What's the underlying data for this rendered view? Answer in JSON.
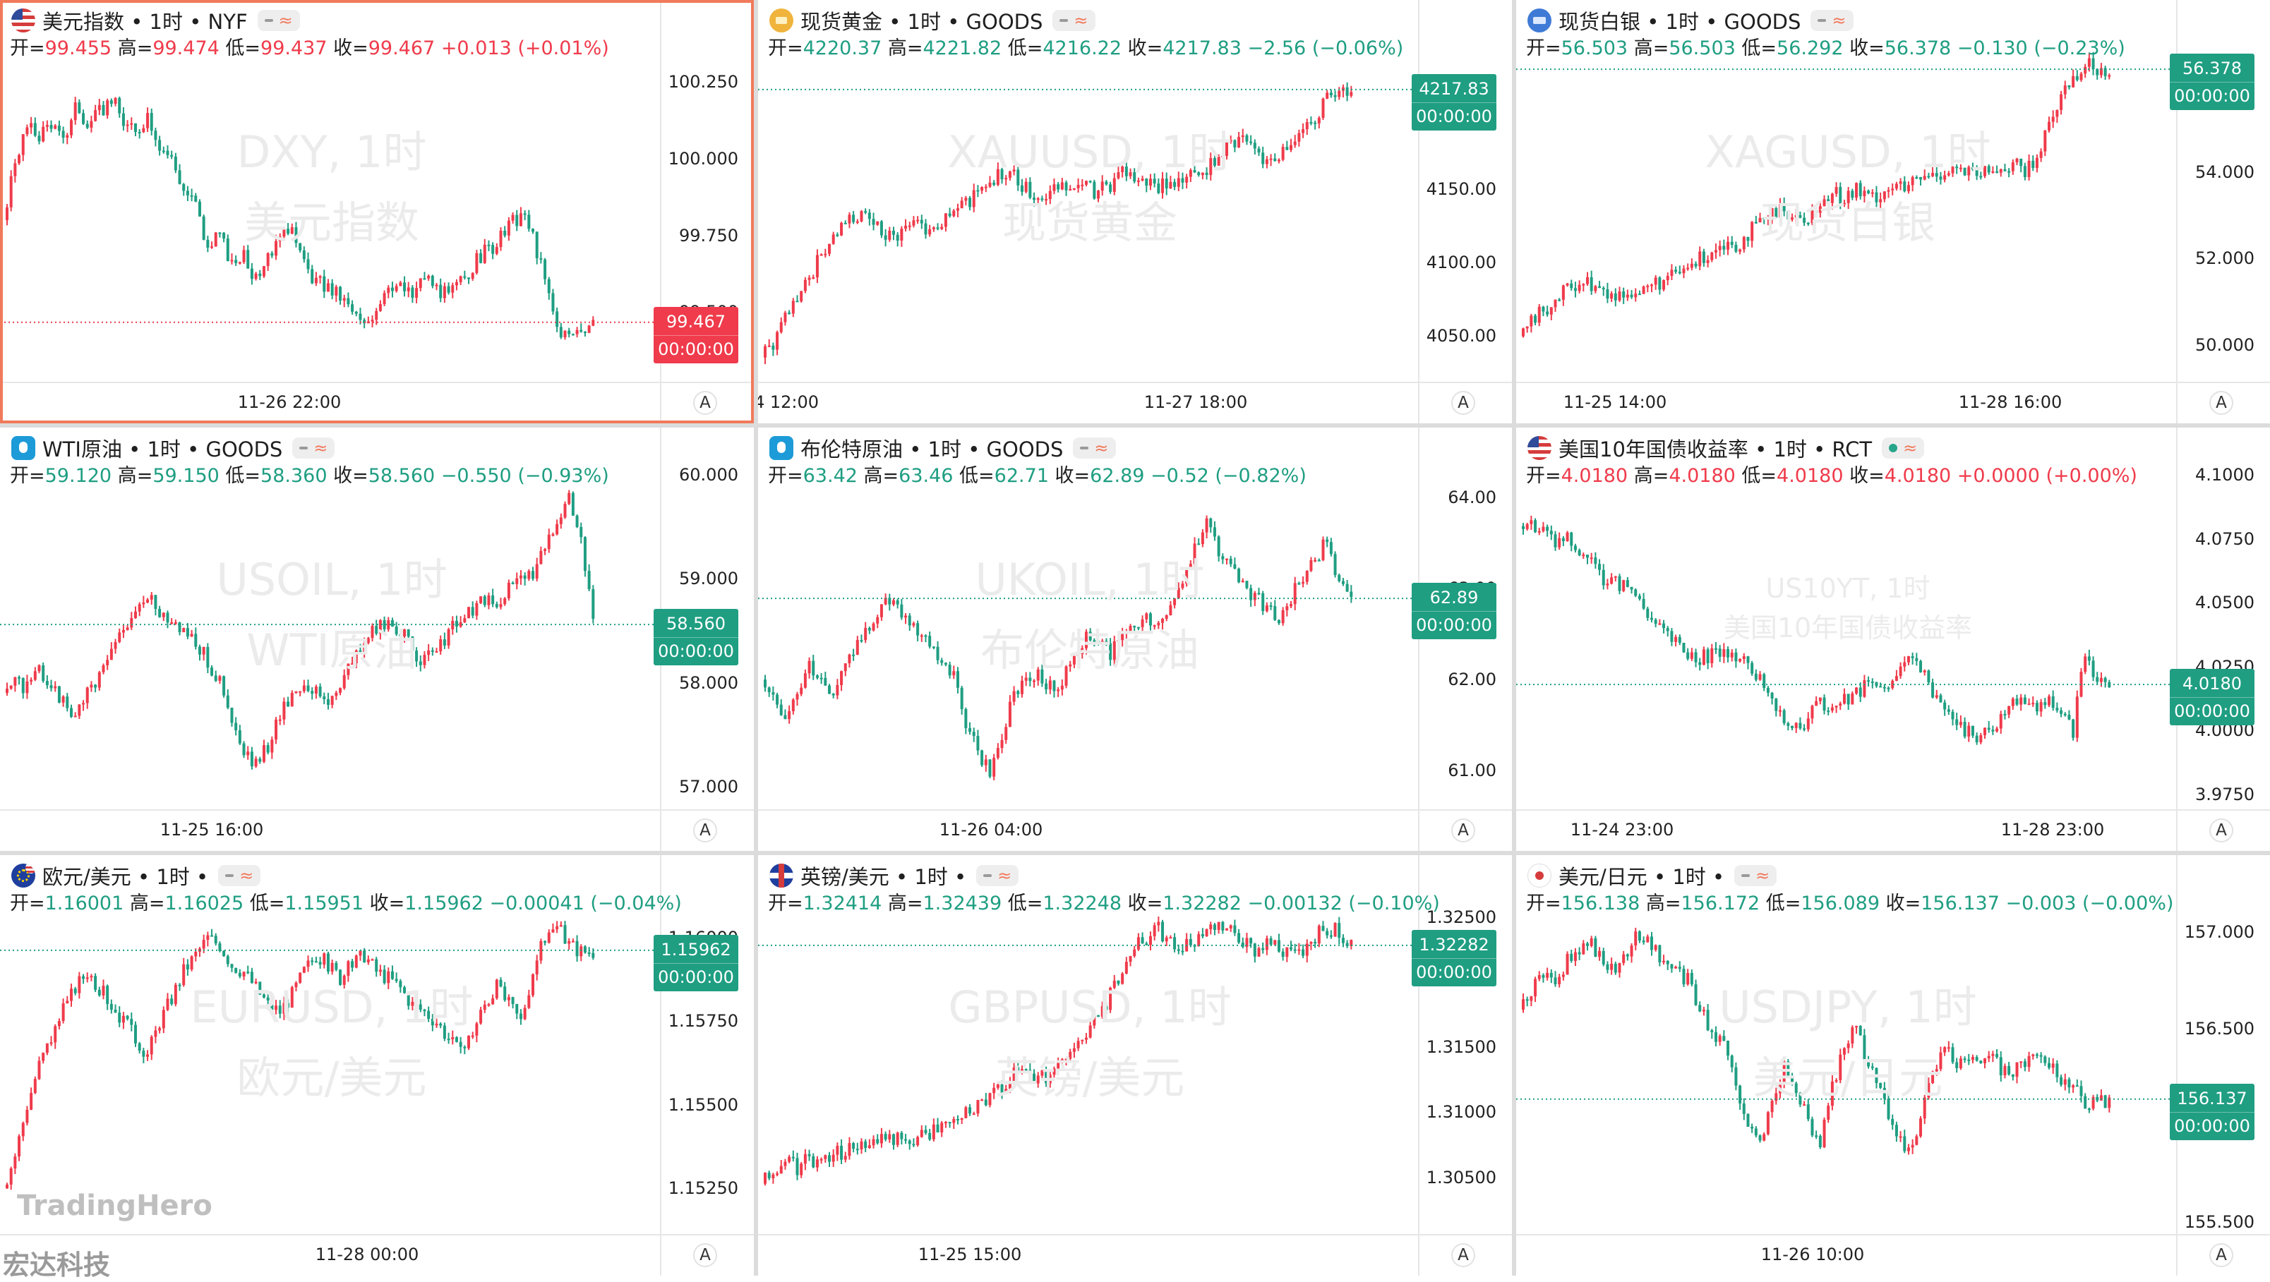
{
  "colors": {
    "up": "#ef3b4b",
    "down": "#1f9e82",
    "accent_border": "#f07a5a"
  },
  "brand": {
    "logo": "TradingHero",
    "company": "宏达科技"
  },
  "panels": [
    {
      "id": "dxy",
      "flag": "us",
      "title": "美元指数 • 1时 • NYF",
      "pill": "dash",
      "change_dir": "up",
      "ohlc": [
        [
          "开",
          "99.455"
        ],
        [
          "高",
          "99.474"
        ],
        [
          "低",
          "99.437"
        ],
        [
          "收",
          "99.467"
        ]
      ],
      "change": "+0.013 (+0.01%)",
      "watermark": [
        "DXY, 1时",
        "美元指数"
      ],
      "watermark_style": "large",
      "y_ticks": [
        "100.250",
        "100.000",
        "99.750",
        "99.500"
      ],
      "y_range": [
        99.28,
        100.38
      ],
      "x_labels": [
        "11-26 22:00"
      ],
      "last_price": "99.467",
      "countdown": "00:00:00",
      "price_path": [
        99.8,
        100.0,
        100.1,
        100.08,
        100.12,
        100.05,
        100.18,
        100.1,
        100.15,
        100.2,
        100.12,
        100.08,
        100.15,
        100.05,
        100.0,
        99.9,
        99.85,
        99.7,
        99.75,
        99.65,
        99.7,
        99.6,
        99.7,
        99.72,
        99.8,
        99.65,
        99.6,
        99.58,
        99.55,
        99.5,
        99.45,
        99.52,
        99.6,
        99.58,
        99.55,
        99.62,
        99.58,
        99.55,
        99.6,
        99.65,
        99.7,
        99.72,
        99.78,
        99.82,
        99.75,
        99.6,
        99.45,
        99.42,
        99.45,
        99.47
      ],
      "active": true
    },
    {
      "id": "xau",
      "flag": "gold",
      "title": "现货黄金 • 1时 • GOODS",
      "pill": "dash",
      "change_dir": "down",
      "ohlc": [
        [
          "开",
          "4220.37"
        ],
        [
          "高",
          "4221.82"
        ],
        [
          "低",
          "4216.22"
        ],
        [
          "收",
          "4217.83"
        ]
      ],
      "change": "−2.56 (−0.06%)",
      "watermark": [
        "XAUUSD, 1时",
        "现货黄金"
      ],
      "watermark_style": "large",
      "y_ticks": [
        "4150.00",
        "4100.00",
        "4050.00"
      ],
      "y_range": [
        4020,
        4250
      ],
      "x_labels": [
        "4 12:00",
        "11-27 18:00"
      ],
      "last_price": "4217.83",
      "countdown": "00:00:00",
      "price_path": [
        4035,
        4045,
        4060,
        4075,
        4090,
        4105,
        4115,
        4125,
        4132,
        4128,
        4120,
        4118,
        4125,
        4130,
        4122,
        4128,
        4135,
        4140,
        4150,
        4155,
        4160,
        4158,
        4150,
        4145,
        4148,
        4152,
        4155,
        4150,
        4148,
        4152,
        4160,
        4158,
        4155,
        4150,
        4155,
        4158,
        4160,
        4165,
        4170,
        4180,
        4185,
        4178,
        4170,
        4175,
        4182,
        4190,
        4200,
        4210,
        4215,
        4218
      ],
      "active": false
    },
    {
      "id": "xag",
      "flag": "silver",
      "title": "现货白银 • 1时 • GOODS",
      "pill": "dash",
      "change_dir": "down",
      "ohlc": [
        [
          "开",
          "56.503"
        ],
        [
          "高",
          "56.503"
        ],
        [
          "低",
          "56.292"
        ],
        [
          "收",
          "56.378"
        ]
      ],
      "change": "−0.130 (−0.23%)",
      "watermark": [
        "XAGUSD, 1时",
        "现货白银"
      ],
      "watermark_style": "large",
      "y_ticks": [
        "54.000",
        "52.000",
        "50.000"
      ],
      "y_range": [
        49.2,
        57.0
      ],
      "x_labels": [
        "11-25 14:00",
        "11-28 16:00"
      ],
      "last_price": "56.378",
      "countdown": "00:00:00",
      "price_path": [
        50.2,
        50.5,
        50.8,
        51.0,
        51.3,
        51.5,
        51.4,
        51.2,
        51.1,
        51.3,
        51.2,
        51.4,
        51.5,
        51.6,
        51.8,
        52.0,
        52.2,
        52.4,
        52.3,
        52.6,
        52.8,
        53.0,
        53.1,
        52.9,
        53.0,
        53.2,
        53.5,
        53.4,
        53.6,
        53.4,
        53.5,
        53.7,
        53.6,
        53.8,
        53.9,
        54.0,
        54.1,
        54.0,
        53.9,
        54.0,
        54.1,
        54.2,
        54.0,
        54.3,
        55.0,
        55.8,
        56.2,
        56.5,
        56.4,
        56.4
      ],
      "active": false
    },
    {
      "id": "wti",
      "flag": "oil",
      "title": "WTI原油 • 1时 • GOODS",
      "pill": "dash",
      "change_dir": "down",
      "ohlc": [
        [
          "开",
          "59.120"
        ],
        [
          "高",
          "59.150"
        ],
        [
          "低",
          "58.360"
        ],
        [
          "收",
          "58.560"
        ]
      ],
      "change": "−0.550 (−0.93%)",
      "watermark": [
        "USOIL, 1时",
        "WTI原油"
      ],
      "watermark_style": "large",
      "y_ticks": [
        "60.000",
        "59.000",
        "58.000",
        "57.000"
      ],
      "y_range": [
        56.8,
        60.05
      ],
      "x_labels": [
        "11-25 16:00"
      ],
      "last_price": "58.560",
      "countdown": "00:00:00",
      "price_path": [
        57.9,
        58.0,
        57.95,
        58.1,
        58.0,
        57.8,
        57.7,
        57.9,
        58.1,
        58.3,
        58.5,
        58.7,
        58.8,
        58.7,
        58.6,
        58.5,
        58.4,
        58.2,
        58.0,
        57.6,
        57.3,
        57.2,
        57.4,
        57.7,
        57.9,
        58.0,
        57.9,
        57.8,
        58.0,
        58.2,
        58.4,
        58.5,
        58.6,
        58.5,
        58.3,
        58.2,
        58.3,
        58.5,
        58.6,
        58.7,
        58.8,
        58.7,
        58.9,
        59.1,
        59.0,
        59.3,
        59.6,
        59.8,
        59.4,
        58.56
      ],
      "active": false
    },
    {
      "id": "brent",
      "flag": "oil",
      "title": "布伦特原油 • 1时 • GOODS",
      "pill": "dash",
      "change_dir": "down",
      "ohlc": [
        [
          "开",
          "63.42"
        ],
        [
          "高",
          "63.46"
        ],
        [
          "低",
          "62.71"
        ],
        [
          "收",
          "62.89"
        ]
      ],
      "change": "−0.52 (−0.82%)",
      "watermark": [
        "UKOIL, 1时",
        "布伦特原油"
      ],
      "watermark_style": "large",
      "y_ticks": [
        "64.00",
        "63.00",
        "62.00",
        "61.00"
      ],
      "y_range": [
        60.6,
        64.3
      ],
      "x_labels": [
        "11-26 04:00"
      ],
      "last_price": "62.89",
      "countdown": "00:00:00",
      "price_path": [
        62.0,
        61.8,
        61.6,
        61.9,
        62.2,
        62.0,
        61.8,
        62.1,
        62.4,
        62.6,
        62.8,
        62.9,
        62.7,
        62.5,
        62.4,
        62.2,
        62.0,
        61.5,
        61.2,
        61.0,
        61.4,
        61.8,
        62.0,
        62.1,
        61.9,
        62.0,
        62.3,
        62.5,
        62.4,
        62.3,
        62.5,
        62.6,
        62.7,
        62.6,
        62.8,
        63.0,
        63.5,
        63.7,
        63.4,
        63.2,
        63.0,
        62.9,
        62.8,
        62.6,
        62.9,
        63.1,
        63.3,
        63.6,
        63.0,
        62.89
      ],
      "active": false
    },
    {
      "id": "us10y",
      "flag": "us",
      "title": "美国10年国债收益率 • 1时 • RCT",
      "pill": "dot",
      "change_dir": "up",
      "ohlc": [
        [
          "开",
          "4.0180"
        ],
        [
          "高",
          "4.0180"
        ],
        [
          "低",
          "4.0180"
        ],
        [
          "收",
          "4.0180"
        ]
      ],
      "change": "+0.0000 (+0.00%)",
      "watermark": [
        "US10YT, 1时",
        "美国10年国债收益率"
      ],
      "watermark_style": "small",
      "y_ticks": [
        "4.1000",
        "4.0750",
        "4.0500",
        "4.0250",
        "4.0000",
        "3.9750"
      ],
      "y_range": [
        3.97,
        4.102
      ],
      "x_labels": [
        "11-24 23:00",
        "11-28 23:00"
      ],
      "last_price": "4.0180",
      "countdown": "00:00:00",
      "price_path": [
        4.08,
        4.082,
        4.078,
        4.072,
        4.075,
        4.07,
        4.065,
        4.06,
        4.058,
        4.055,
        4.05,
        4.045,
        4.04,
        4.035,
        4.03,
        4.028,
        4.03,
        4.032,
        4.028,
        4.025,
        4.02,
        4.01,
        4.005,
        4.0,
        4.005,
        4.01,
        4.008,
        4.012,
        4.015,
        4.018,
        4.015,
        4.02,
        4.025,
        4.03,
        4.018,
        4.01,
        4.005,
        4.0,
        3.998,
        4.0,
        4.005,
        4.01,
        4.012,
        4.01,
        4.012,
        4.008,
        4.0,
        4.03,
        4.02,
        4.018
      ],
      "active": false
    },
    {
      "id": "eurusd",
      "flag": "eu",
      "title": "欧元/美元 • 1时 •",
      "pill": "dash",
      "change_dir": "down",
      "ohlc": [
        [
          "开",
          "1.16001"
        ],
        [
          "高",
          "1.16025"
        ],
        [
          "低",
          "1.15951"
        ],
        [
          "收",
          "1.15962"
        ]
      ],
      "change": "−0.00041 (−0.04%)",
      "watermark": [
        "EURUSD, 1时",
        "欧元/美元"
      ],
      "watermark_style": "large",
      "y_ticks": [
        "1.16000",
        "1.15750",
        "1.15500",
        "1.15250"
      ],
      "y_range": [
        1.1512,
        1.1612
      ],
      "x_labels": [
        "11-28 00:00"
      ],
      "last_price": "1.15962",
      "countdown": "00:00:00",
      "price_path": [
        1.1525,
        1.1535,
        1.155,
        1.1562,
        1.157,
        1.1578,
        1.1585,
        1.159,
        1.1585,
        1.158,
        1.1575,
        1.157,
        1.1565,
        1.1575,
        1.1582,
        1.159,
        1.1595,
        1.16,
        1.1598,
        1.1592,
        1.159,
        1.1585,
        1.158,
        1.1578,
        1.1583,
        1.159,
        1.1595,
        1.1592,
        1.1588,
        1.1592,
        1.1595,
        1.159,
        1.1588,
        1.1585,
        1.158,
        1.1578,
        1.1575,
        1.157,
        1.1565,
        1.1572,
        1.158,
        1.1585,
        1.158,
        1.1575,
        1.159,
        1.16,
        1.1603,
        1.1598,
        1.1596,
        1.1596
      ],
      "active": false
    },
    {
      "id": "gbpusd",
      "flag": "gb",
      "title": "英镑/美元 • 1时 •",
      "pill": "dash",
      "change_dir": "down",
      "ohlc": [
        [
          "开",
          "1.32414"
        ],
        [
          "高",
          "1.32439"
        ],
        [
          "低",
          "1.32248"
        ],
        [
          "收",
          "1.32282"
        ]
      ],
      "change": "−0.00132 (−0.10%)",
      "watermark": [
        "GBPUSD, 1时",
        "英镑/美元"
      ],
      "watermark_style": "large",
      "y_ticks": [
        "1.32500",
        "1.31500",
        "1.31000",
        "1.30500"
      ],
      "y_range": [
        1.3008,
        1.3265
      ],
      "x_labels": [
        "11-25 15:00"
      ],
      "last_price": "1.32282",
      "countdown": "00:00:00",
      "price_path": [
        1.3045,
        1.3055,
        1.306,
        1.3058,
        1.3065,
        1.3062,
        1.3068,
        1.307,
        1.3075,
        1.3072,
        1.3078,
        1.308,
        1.3078,
        1.3082,
        1.3085,
        1.309,
        1.3095,
        1.31,
        1.3105,
        1.311,
        1.312,
        1.313,
        1.3135,
        1.3125,
        1.313,
        1.314,
        1.315,
        1.316,
        1.3175,
        1.319,
        1.321,
        1.3225,
        1.3235,
        1.324,
        1.3232,
        1.3225,
        1.323,
        1.3238,
        1.3242,
        1.3238,
        1.323,
        1.3225,
        1.3232,
        1.3228,
        1.322,
        1.3225,
        1.3235,
        1.3242,
        1.3238,
        1.3228
      ],
      "active": false
    },
    {
      "id": "usdjpy",
      "flag": "jp",
      "title": "美元/日元 • 1时 •",
      "pill": "dash",
      "change_dir": "down",
      "ohlc": [
        [
          "开",
          "156.138"
        ],
        [
          "高",
          "156.172"
        ],
        [
          "低",
          "156.089"
        ],
        [
          "收",
          "156.137"
        ]
      ],
      "change": "−0.003 (−0.00%)",
      "watermark": [
        "USDJPY, 1时",
        "美元/日元"
      ],
      "watermark_style": "large",
      "y_ticks": [
        "157.000",
        "156.500",
        "156.000",
        "155.500"
      ],
      "y_range": [
        155.45,
        157.18
      ],
      "x_labels": [
        "11-26 10:00"
      ],
      "last_price": "156.137",
      "countdown": "00:00:00",
      "price_path": [
        156.6,
        156.7,
        156.8,
        156.75,
        156.85,
        156.9,
        156.95,
        156.85,
        156.8,
        156.9,
        157.0,
        156.95,
        156.85,
        156.8,
        156.75,
        156.6,
        156.5,
        156.4,
        156.2,
        156.0,
        155.9,
        156.1,
        156.3,
        156.2,
        156.0,
        155.9,
        156.2,
        156.4,
        156.5,
        156.3,
        156.2,
        156.0,
        155.9,
        155.95,
        156.2,
        156.4,
        156.35,
        156.3,
        156.32,
        156.35,
        156.3,
        156.28,
        156.32,
        156.35,
        156.3,
        156.25,
        156.2,
        156.1,
        156.12,
        156.137
      ],
      "active": false
    }
  ]
}
